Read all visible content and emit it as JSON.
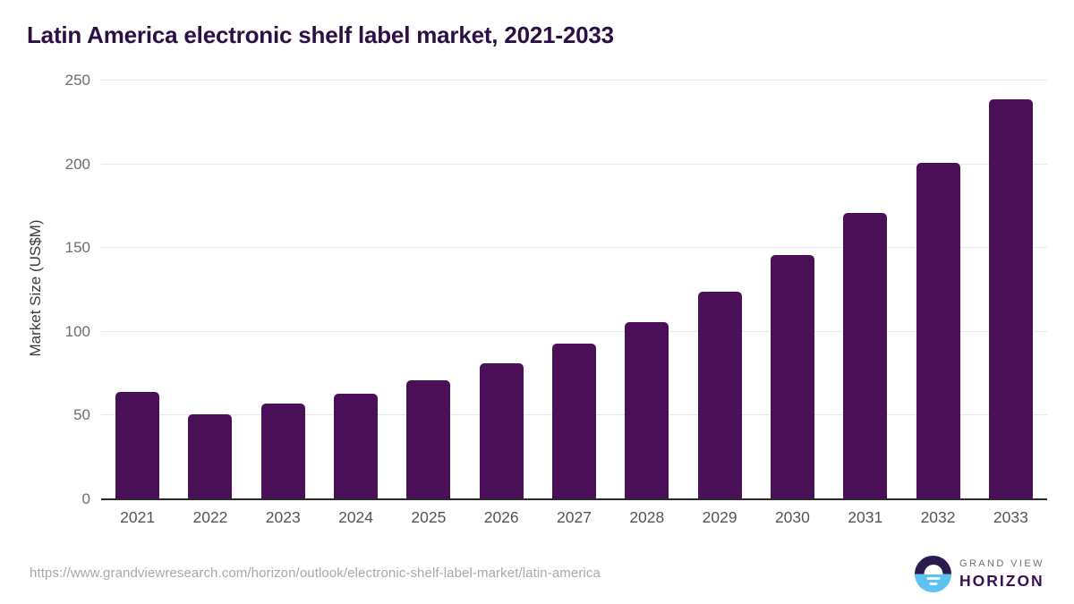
{
  "title": "Latin America electronic shelf label market, 2021-2033",
  "chart_data": {
    "type": "bar",
    "categories": [
      "2021",
      "2022",
      "2023",
      "2024",
      "2025",
      "2026",
      "2027",
      "2028",
      "2029",
      "2030",
      "2031",
      "2032",
      "2033"
    ],
    "values": [
      64,
      51,
      57,
      63,
      71,
      81,
      93,
      106,
      124,
      146,
      171,
      201,
      239
    ],
    "title": "Latin America electronic shelf label market, 2021-2033",
    "xlabel": "",
    "ylabel": "Market Size (US$M)",
    "ylim": [
      0,
      250
    ],
    "yticks": [
      0,
      50,
      100,
      150,
      200,
      250
    ],
    "grid": true,
    "legend": false,
    "bar_color": "#4a1159"
  },
  "colors": {
    "title_text": "#2e0f45",
    "bar": "#4a1159",
    "gridline": "#e8e8e8",
    "axis_line": "#2b2b2b",
    "y_tick_text": "#6e6e6e",
    "x_tick_text": "#545454",
    "source_text": "#a8a8a8",
    "logo_top": "#2b1a4e",
    "logo_bottom": "#5ec1ef",
    "logo_grand_view_text": "#6f6f6f",
    "logo_horizon_text": "#361253"
  },
  "footer": {
    "source_url": "https://www.grandviewresearch.com/horizon/outlook/electronic-shelf-label-market/latin-america",
    "logo": {
      "line1": "GRAND VIEW",
      "line2": "HORIZON"
    }
  }
}
